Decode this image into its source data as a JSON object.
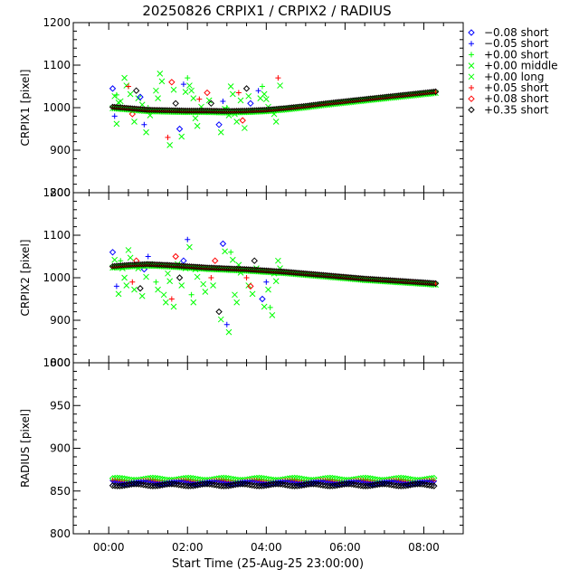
{
  "chart_data": {
    "type": "scatter",
    "title": "20250826 CRPIX1 / CRPIX2 / RADIUS",
    "xlabel": "Start Time (25-Aug-25 23:00:00)",
    "xlim": [
      -0.9,
      9.0
    ],
    "x_ticks": [
      0,
      2,
      4,
      6,
      8
    ],
    "x_tick_labels": [
      "00:00",
      "02:00",
      "04:00",
      "06:00",
      "08:00"
    ],
    "legend": [
      {
        "label": "−0.08 short",
        "marker": "diamond",
        "color": "#0000ff"
      },
      {
        "label": "−0.05 short",
        "marker": "plus",
        "color": "#0000ff"
      },
      {
        "label": "+0.00 short",
        "marker": "plus",
        "color": "#00ff00"
      },
      {
        "label": "+0.00 middle",
        "marker": "cross",
        "color": "#00ff00"
      },
      {
        "label": "+0.00 long",
        "marker": "cross",
        "color": "#00ff00"
      },
      {
        "label": "+0.05 short",
        "marker": "plus",
        "color": "#ff0000"
      },
      {
        "label": "+0.08 short",
        "marker": "diamond",
        "color": "#ff0000"
      },
      {
        "label": "+0.35 short",
        "marker": "diamond",
        "color": "#000000"
      }
    ],
    "panels": [
      {
        "name": "crpix1",
        "ylabel": "CRPIX1 [pixel]",
        "ylim": [
          800,
          1200
        ],
        "y_ticks": [
          800,
          900,
          1000,
          1100,
          1200
        ],
        "y_tick_labels": [
          "800",
          "900",
          "1000",
          "1100",
          "1200"
        ],
        "trend_x": [
          0.1,
          0.5,
          1.0,
          1.5,
          2.0,
          2.5,
          3.0,
          3.5,
          4.0,
          4.5,
          5.0,
          5.5,
          6.0,
          6.5,
          7.0,
          7.5,
          8.0,
          8.3
        ],
        "trend_y": [
          1000,
          997,
          993,
          992,
          991,
          991,
          990,
          991,
          993,
          997,
          1002,
          1008,
          1013,
          1018,
          1023,
          1028,
          1033,
          1036
        ],
        "scatter_x": [
          0.1,
          0.15,
          0.2,
          0.3,
          0.4,
          0.5,
          0.6,
          0.7,
          0.8,
          0.9,
          1.0,
          1.2,
          1.3,
          1.5,
          1.6,
          1.7,
          1.8,
          1.9,
          2.0,
          2.1,
          2.2,
          2.3,
          2.5,
          2.6,
          2.8,
          2.9,
          3.0,
          3.1,
          3.2,
          3.3,
          3.4,
          3.5,
          3.6,
          3.8,
          3.9,
          4.0,
          4.2,
          4.3
        ],
        "scatter_y": [
          1045,
          980,
          1030,
          1015,
          1070,
          1050,
          985,
          1040,
          1025,
          960,
          1000,
          1040,
          1080,
          930,
          1060,
          1010,
          950,
          1055,
          1070,
          1040,
          975,
          1020,
          1035,
          1010,
          960,
          1015,
          1000,
          1050,
          985,
          1035,
          970,
          1045,
          1010,
          1040,
          1050,
          1020,
          985,
          1070
        ]
      },
      {
        "name": "crpix2",
        "ylabel": "CRPIX2 [pixel]",
        "ylim": [
          800,
          1200
        ],
        "y_ticks": [
          800,
          900,
          1000,
          1100,
          1200
        ],
        "y_tick_labels": [
          "800",
          "900",
          "1000",
          "1100",
          "1200"
        ],
        "trend_x": [
          0.1,
          0.5,
          1.0,
          1.5,
          2.0,
          2.5,
          3.0,
          3.5,
          4.0,
          4.5,
          5.0,
          5.5,
          6.0,
          6.5,
          7.0,
          7.5,
          8.0,
          8.3
        ],
        "trend_y": [
          1025,
          1028,
          1030,
          1028,
          1025,
          1022,
          1020,
          1018,
          1015,
          1012,
          1008,
          1004,
          1000,
          996,
          993,
          990,
          987,
          985
        ],
        "scatter_x": [
          0.1,
          0.2,
          0.3,
          0.4,
          0.5,
          0.6,
          0.7,
          0.8,
          0.9,
          1.0,
          1.2,
          1.4,
          1.5,
          1.6,
          1.7,
          1.8,
          1.9,
          2.0,
          2.1,
          2.2,
          2.4,
          2.6,
          2.7,
          2.8,
          2.9,
          3.0,
          3.1,
          3.2,
          3.3,
          3.5,
          3.6,
          3.7,
          3.9,
          4.0,
          4.1,
          4.2,
          4.3
        ],
        "scatter_y": [
          1060,
          980,
          1040,
          1000,
          1065,
          990,
          1040,
          975,
          1020,
          1050,
          990,
          960,
          1010,
          950,
          1050,
          1000,
          1040,
          1090,
          960,
          1020,
          985,
          1000,
          1040,
          920,
          1080,
          890,
          1060,
          960,
          1030,
          1000,
          980,
          1040,
          950,
          990,
          930,
          1010,
          1040
        ]
      },
      {
        "name": "radius",
        "ylabel": "RADIUS [pixel]",
        "ylim": [
          800,
          1000
        ],
        "y_ticks": [
          800,
          850,
          900,
          950,
          1000
        ],
        "y_tick_labels": [
          "800",
          "850",
          "900",
          "950",
          "1000"
        ],
        "trend_x": [
          0.1,
          8.3
        ],
        "series_levels": [
          {
            "color": "#00ff00",
            "value": 864
          },
          {
            "color": "#ff0000",
            "value": 861
          },
          {
            "color": "#0000ff",
            "value": 859
          },
          {
            "color": "#000000",
            "value": 857
          }
        ]
      }
    ]
  }
}
